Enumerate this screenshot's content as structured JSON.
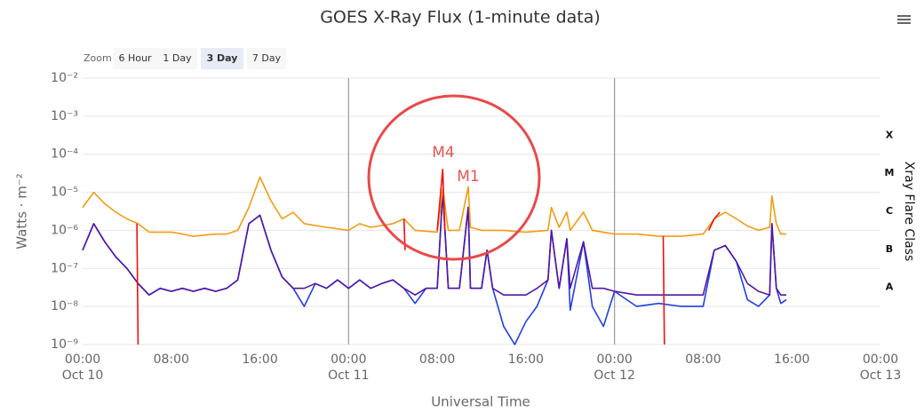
{
  "chart_data": {
    "type": "line",
    "title": "GOES X-Ray Flux (1-minute data)",
    "range_selector": {
      "label": "Zoom",
      "buttons": [
        "6 Hour",
        "1 Day",
        "3 Day",
        "7 Day"
      ],
      "selected": 2
    },
    "x_label": "Universal Time",
    "y_label": "Watts · m⁻²",
    "y2_label": "Xray Flare Class",
    "log": true,
    "grid": true,
    "xlim": [
      "Oct 10 00:00",
      "Oct 13 00:00"
    ],
    "xticks": [
      {
        "value": "Oct 10 00:00",
        "label": "00:00",
        "date": "Oct 10"
      },
      {
        "value": "Oct 10 08:00",
        "label": "08:00"
      },
      {
        "value": "Oct 10 16:00",
        "label": "16:00"
      },
      {
        "value": "Oct 11 00:00",
        "label": "00:00",
        "date": "Oct 11"
      },
      {
        "value": "Oct 11 08:00",
        "label": "08:00"
      },
      {
        "value": "Oct 11 16:00",
        "label": "16:00"
      },
      {
        "value": "Oct 12 00:00",
        "label": "00:00",
        "date": "Oct 12"
      },
      {
        "value": "Oct 12 08:00",
        "label": "08:00"
      },
      {
        "value": "Oct 12 16:00",
        "label": "16:00"
      },
      {
        "value": "Oct 13 00:00",
        "label": "00:00",
        "date": "Oct 13"
      }
    ],
    "ylim": [
      1e-09,
      0.01
    ],
    "yticks": [
      {
        "value": 1e-09,
        "label": "10⁻⁹"
      },
      {
        "value": 1e-08,
        "label": "10⁻⁸"
      },
      {
        "value": 1e-07,
        "label": "10⁻⁷"
      },
      {
        "value": 1e-06,
        "label": "10⁻⁶"
      },
      {
        "value": 1e-05,
        "label": "10⁻⁵"
      },
      {
        "value": 0.0001,
        "label": "10⁻⁴"
      },
      {
        "value": 0.001,
        "label": "10⁻³"
      },
      {
        "value": 0.01,
        "label": "10⁻²"
      }
    ],
    "y2lim": [
      1e-09,
      0.01
    ],
    "y2ticks": [
      {
        "value": 3.16e-08,
        "label": "A"
      },
      {
        "value": 3.16e-07,
        "label": "B"
      },
      {
        "value": 3.16e-06,
        "label": "C"
      },
      {
        "value": 3.16e-05,
        "label": "M"
      },
      {
        "value": 0.000316,
        "label": "X"
      }
    ],
    "annotations": [
      "M4",
      "M1"
    ],
    "series": [
      {
        "color": "#1f3fe6",
        "x": [
          "Oct 10 00:00",
          "Oct 10 01:00",
          "Oct 10 02:00",
          "Oct 10 03:00",
          "Oct 10 04:00",
          "Oct 10 05:00",
          "Oct 10 06:00",
          "Oct 10 07:00",
          "Oct 10 08:00",
          "Oct 10 09:00",
          "Oct 10 10:00",
          "Oct 10 11:00",
          "Oct 10 12:00",
          "Oct 10 13:00",
          "Oct 10 14:00",
          "Oct 10 15:00",
          "Oct 10 16:00",
          "Oct 10 17:00",
          "Oct 10 18:00",
          "Oct 10 19:00",
          "Oct 10 20:00",
          "Oct 10 21:00",
          "Oct 10 22:00",
          "Oct 10 23:00",
          "Oct 11 00:00",
          "Oct 11 01:00",
          "Oct 11 02:00",
          "Oct 11 03:00",
          "Oct 11 04:00",
          "Oct 11 05:00",
          "Oct 11 06:00",
          "Oct 11 07:00",
          "Oct 11 08:00",
          "Oct 11 08:30",
          "Oct 11 09:00",
          "Oct 11 10:00",
          "Oct 11 10:48",
          "Oct 11 11:00",
          "Oct 11 12:00",
          "Oct 11 12:30",
          "Oct 11 13:00",
          "Oct 11 14:00",
          "Oct 11 15:00",
          "Oct 11 16:00",
          "Oct 11 17:00",
          "Oct 11 18:00",
          "Oct 11 18:18",
          "Oct 11 19:00",
          "Oct 11 19:42",
          "Oct 11 20:00",
          "Oct 11 21:12",
          "Oct 11 22:00",
          "Oct 11 23:00",
          "Oct 12 00:00",
          "Oct 12 02:00",
          "Oct 12 04:00",
          "Oct 12 06:00",
          "Oct 12 08:00",
          "Oct 12 09:00",
          "Oct 12 10:00",
          "Oct 12 11:00",
          "Oct 12 12:00",
          "Oct 12 13:00",
          "Oct 12 14:00",
          "Oct 12 14:12",
          "Oct 12 14:36",
          "Oct 12 15:00",
          "Oct 12 15:30"
        ],
        "values": [
          3e-07,
          1.5e-06,
          5e-07,
          2e-07,
          1e-07,
          4e-08,
          2e-08,
          3e-08,
          2.5e-08,
          3e-08,
          2.5e-08,
          3e-08,
          2.5e-08,
          3e-08,
          5e-08,
          1.5e-06,
          2.5e-06,
          3e-07,
          6e-08,
          3e-08,
          1e-08,
          4e-08,
          3e-08,
          5e-08,
          3e-08,
          5e-08,
          3e-08,
          4e-08,
          5e-08,
          3e-08,
          1.2e-08,
          3e-08,
          3e-08,
          1e-05,
          3e-08,
          3e-08,
          4e-06,
          3e-08,
          3e-08,
          3e-07,
          3e-08,
          3e-09,
          1e-09,
          4e-09,
          1e-08,
          5e-08,
          1e-06,
          3e-08,
          6e-07,
          8e-09,
          5e-07,
          1e-08,
          3e-09,
          2.5e-08,
          1e-08,
          1.2e-08,
          1e-08,
          1e-08,
          3e-07,
          4e-07,
          1.5e-07,
          1.5e-08,
          1e-08,
          2e-08,
          1.5e-06,
          3e-08,
          1.2e-08,
          1.5e-08
        ]
      },
      {
        "color": "#5216a6",
        "x": [
          "Oct 10 00:00",
          "Oct 10 01:00",
          "Oct 10 02:00",
          "Oct 10 03:00",
          "Oct 10 04:00",
          "Oct 10 05:00",
          "Oct 10 06:00",
          "Oct 10 07:00",
          "Oct 10 08:00",
          "Oct 10 09:00",
          "Oct 10 10:00",
          "Oct 10 11:00",
          "Oct 10 12:00",
          "Oct 10 13:00",
          "Oct 10 14:00",
          "Oct 10 15:00",
          "Oct 10 16:00",
          "Oct 10 17:00",
          "Oct 10 18:00",
          "Oct 10 19:00",
          "Oct 10 20:00",
          "Oct 10 21:00",
          "Oct 10 22:00",
          "Oct 10 23:00",
          "Oct 11 00:00",
          "Oct 11 01:00",
          "Oct 11 02:00",
          "Oct 11 03:00",
          "Oct 11 04:00",
          "Oct 11 05:00",
          "Oct 11 06:00",
          "Oct 11 07:00",
          "Oct 11 08:00",
          "Oct 11 08:30",
          "Oct 11 09:00",
          "Oct 11 10:00",
          "Oct 11 10:48",
          "Oct 11 11:00",
          "Oct 11 12:00",
          "Oct 11 12:30",
          "Oct 11 13:00",
          "Oct 11 14:00",
          "Oct 11 15:00",
          "Oct 11 16:00",
          "Oct 11 17:00",
          "Oct 11 18:00",
          "Oct 11 18:18",
          "Oct 11 19:00",
          "Oct 11 19:42",
          "Oct 11 20:00",
          "Oct 11 21:12",
          "Oct 11 22:00",
          "Oct 11 23:00",
          "Oct 12 00:00",
          "Oct 12 02:00",
          "Oct 12 04:00",
          "Oct 12 06:00",
          "Oct 12 08:00",
          "Oct 12 09:00",
          "Oct 12 10:00",
          "Oct 12 11:00",
          "Oct 12 12:00",
          "Oct 12 13:00",
          "Oct 12 14:00",
          "Oct 12 14:12",
          "Oct 12 14:36",
          "Oct 12 15:00",
          "Oct 12 15:30"
        ],
        "values": [
          3e-07,
          1.5e-06,
          5e-07,
          2e-07,
          1e-07,
          4e-08,
          2e-08,
          3e-08,
          2.5e-08,
          3e-08,
          2.5e-08,
          3e-08,
          2.5e-08,
          3e-08,
          5e-08,
          1.5e-06,
          2.5e-06,
          3e-07,
          6e-08,
          3e-08,
          3e-08,
          4e-08,
          3e-08,
          5e-08,
          3e-08,
          5e-08,
          3e-08,
          4e-08,
          5e-08,
          3e-08,
          2e-08,
          3e-08,
          3e-08,
          1e-05,
          3e-08,
          3e-08,
          4e-06,
          3e-08,
          3e-08,
          3e-07,
          3e-08,
          2e-08,
          2e-08,
          2e-08,
          3e-08,
          5e-08,
          1e-06,
          3e-08,
          6e-07,
          3e-08,
          5e-07,
          3e-08,
          3e-08,
          2.5e-08,
          2e-08,
          2e-08,
          2e-08,
          2e-08,
          3e-07,
          4e-07,
          1.5e-07,
          4e-08,
          2.5e-08,
          2e-08,
          1.5e-06,
          3e-08,
          2e-08,
          2e-08
        ]
      },
      {
        "color": "#f39c12",
        "x": [
          "Oct 10 00:00",
          "Oct 10 01:00",
          "Oct 10 02:00",
          "Oct 10 03:00",
          "Oct 10 04:00",
          "Oct 10 05:00",
          "Oct 10 06:00",
          "Oct 10 08:00",
          "Oct 10 09:00",
          "Oct 10 10:00",
          "Oct 10 12:00",
          "Oct 10 13:00",
          "Oct 10 14:00",
          "Oct 10 15:00",
          "Oct 10 16:00",
          "Oct 10 17:00",
          "Oct 10 18:00",
          "Oct 10 19:00",
          "Oct 10 20:00",
          "Oct 10 22:00",
          "Oct 11 00:00",
          "Oct 11 01:00",
          "Oct 11 02:00",
          "Oct 11 04:00",
          "Oct 11 05:00",
          "Oct 11 06:00",
          "Oct 11 08:00",
          "Oct 11 08:30",
          "Oct 11 09:00",
          "Oct 11 10:00",
          "Oct 11 10:48",
          "Oct 11 11:00",
          "Oct 11 12:00",
          "Oct 11 14:00",
          "Oct 11 16:00",
          "Oct 11 18:00",
          "Oct 11 18:18",
          "Oct 11 19:00",
          "Oct 11 19:42",
          "Oct 11 20:00",
          "Oct 11 21:12",
          "Oct 11 22:00",
          "Oct 12 00:00",
          "Oct 12 02:00",
          "Oct 12 04:00",
          "Oct 12 06:00",
          "Oct 12 08:00",
          "Oct 12 09:00",
          "Oct 12 10:00",
          "Oct 12 11:00",
          "Oct 12 12:00",
          "Oct 12 13:00",
          "Oct 12 14:00",
          "Oct 12 14:12",
          "Oct 12 14:36",
          "Oct 12 15:00",
          "Oct 12 15:30"
        ],
        "values": [
          4e-06,
          1e-05,
          5e-06,
          3e-06,
          2e-06,
          1.5e-06,
          9e-07,
          9e-07,
          8e-07,
          7e-07,
          8e-07,
          8e-07,
          1e-06,
          4e-06,
          2.5e-05,
          6e-06,
          2e-06,
          3e-06,
          1.5e-06,
          1.2e-06,
          1e-06,
          1.5e-06,
          1.2e-06,
          1.5e-06,
          2e-06,
          1e-06,
          9e-07,
          1.2e-05,
          1e-06,
          1e-06,
          1.4e-05,
          1.2e-06,
          1e-06,
          1e-06,
          9e-07,
          1e-06,
          4e-06,
          1.2e-06,
          3e-06,
          1e-06,
          3e-06,
          1e-06,
          8e-07,
          8e-07,
          7e-07,
          7e-07,
          8e-07,
          2e-06,
          3e-06,
          2e-06,
          1.3e-06,
          1e-06,
          1.2e-06,
          8e-06,
          1.5e-06,
          8e-07,
          8e-07
        ]
      },
      {
        "color": "#ee1111",
        "x": [
          "Oct 10 04:54",
          "Oct 10 05:00",
          "Oct 10 06:00",
          "Oct 11 05:00",
          "Oct 11 05:06",
          "Oct 11 06:00",
          "Oct 11 08:00",
          "Oct 11 08:30",
          "Oct 11 08:42",
          "Oct 11 12:00",
          "Oct 12 04:24",
          "Oct 12 04:30",
          "Oct 12 06:00",
          "Oct 12 08:30",
          "Oct 12 09:00",
          "Oct 12 09:30"
        ],
        "values": [
          1.5e-06,
          1e-09,
          null,
          2e-06,
          3e-07,
          null,
          1e-06,
          4e-05,
          1e-06,
          null,
          7e-07,
          1e-09,
          null,
          1e-06,
          2e-06,
          3e-06
        ]
      }
    ]
  }
}
